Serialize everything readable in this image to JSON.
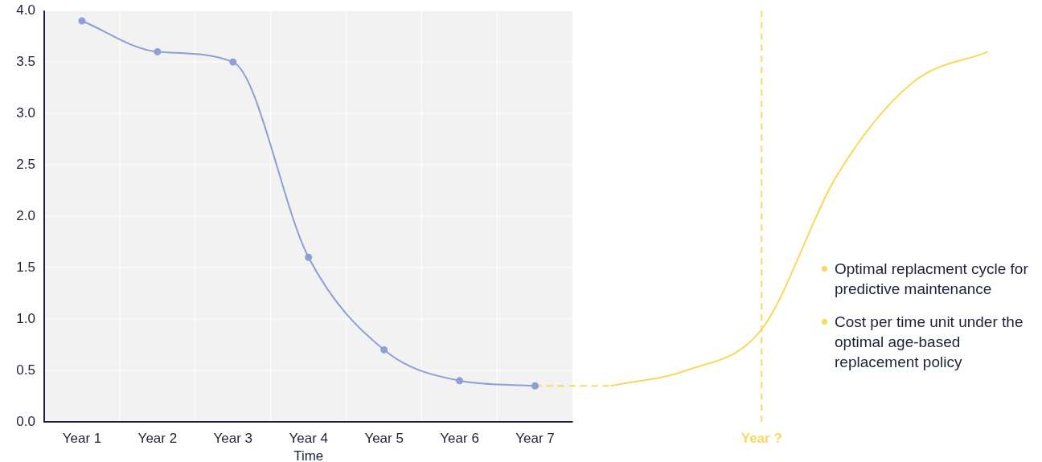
{
  "chart_data": {
    "type": "line",
    "xlabel": "Time",
    "categories": [
      "Year 1",
      "Year 2",
      "Year 3",
      "Year 4",
      "Year 5",
      "Year 6",
      "Year 7",
      null,
      null,
      "Year ?",
      null,
      null,
      null
    ],
    "series": [
      {
        "color": "#8c9fd6",
        "values": [
          3.9,
          3.6,
          3.5,
          1.6,
          0.7,
          0.4,
          0.35,
          null,
          null,
          null,
          null,
          null,
          null
        ],
        "marker": "circle"
      },
      {
        "name": "Optimal replacment cycle for predictive maintenance",
        "color": "#fbd75b",
        "values": [
          null,
          null,
          null,
          null,
          null,
          null,
          0.35,
          0.35,
          null,
          null,
          null,
          null,
          null
        ],
        "line_style": "dashed"
      },
      {
        "name": "Cost per time unit under the optimal age-based replacement policy",
        "color": "#fbd75b",
        "values": [
          null,
          null,
          null,
          null,
          null,
          null,
          null,
          0.35,
          0.5,
          0.9,
          2.4,
          3.3,
          3.6
        ]
      }
    ],
    "ylim": [
      0,
      4
    ],
    "yticks": [
      {
        "value": 0,
        "label": "0.0"
      },
      {
        "value": 0.5,
        "label": "0.5"
      },
      {
        "value": 1,
        "label": "1.0"
      },
      {
        "value": 1.5,
        "label": "1.5"
      },
      {
        "value": 2,
        "label": "2.0"
      },
      {
        "value": 2.5,
        "label": "2.5"
      },
      {
        "value": 3,
        "label": "3.0"
      },
      {
        "value": 3.5,
        "label": "3.5"
      },
      {
        "value": 4,
        "label": "4.0"
      }
    ],
    "ref_lines": [
      {
        "axis": "x",
        "value": "Year ?",
        "color": "#fbd75b",
        "line_style": "dashed"
      }
    ],
    "bands": [
      {
        "axis": "x",
        "from": "Year 1",
        "to": "Year 7",
        "color": "#f2f2f2"
      }
    ],
    "grid": true,
    "legend": "right"
  }
}
